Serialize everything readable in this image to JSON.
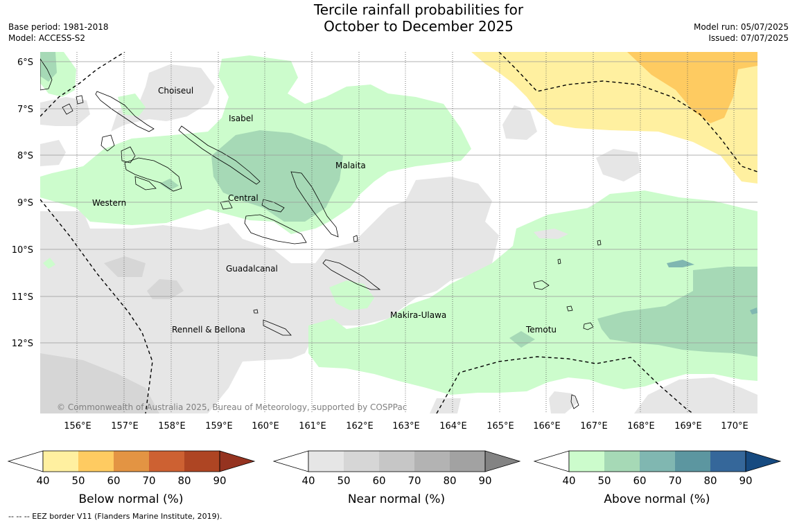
{
  "title_line1": "Tercile rainfall probabilities for",
  "title_line2": "October to December 2025",
  "base_period": "Base period: 1981-2018",
  "model": "Model: ACCESS-S2",
  "model_run": "Model run: 05/07/2025",
  "issued": "Issued: 07/07/2025",
  "copyright": "© Commonwealth of Australia 2025, Bureau of Meteorology, supported by COSPPac",
  "lat_labels": [
    "6°S",
    "7°S",
    "8°S",
    "9°S",
    "10°S",
    "11°S",
    "12°S"
  ],
  "lon_labels": [
    "156°E",
    "157°E",
    "158°E",
    "159°E",
    "160°E",
    "161°E",
    "162°E",
    "163°E",
    "164°E",
    "165°E",
    "166°E",
    "167°E",
    "168°E",
    "169°E",
    "170°E"
  ],
  "region_labels": [
    "Choiseul",
    "Isabel",
    "Malaita",
    "Western",
    "Central",
    "Guadalcanal",
    "Makira-Ulawa",
    "Rennell & Bellona",
    "Temotu"
  ],
  "colorbars": [
    {
      "label": "Below normal (%)",
      "ticks": [
        "40",
        "50",
        "60",
        "70",
        "80",
        "90"
      ],
      "colors": [
        "#fff0a0",
        "#fecb61",
        "#e39443",
        "#cd6132",
        "#ae4523",
        "#953320"
      ]
    },
    {
      "label": "Near normal (%)",
      "ticks": [
        "40",
        "50",
        "60",
        "70",
        "80",
        "90"
      ],
      "colors": [
        "#e6e6e6",
        "#d6d6d6",
        "#c6c6c6",
        "#b3b3b3",
        "#a2a2a2",
        "#838383"
      ]
    },
    {
      "label": "Above normal (%)",
      "ticks": [
        "40",
        "50",
        "60",
        "70",
        "80",
        "90"
      ],
      "colors": [
        "#ccfccc",
        "#a6d9b6",
        "#80b7b1",
        "#5c96a0",
        "#35679a",
        "#164a80"
      ]
    }
  ],
  "footnote": "--  --  -- EEZ border V11 (Flanders Marine Institute, 2019)."
}
